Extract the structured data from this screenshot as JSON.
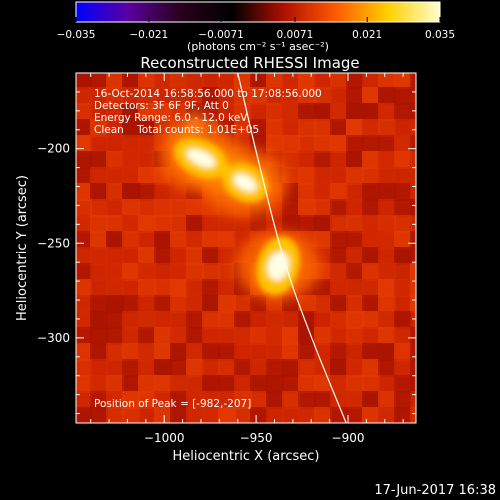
{
  "chart_data": {
    "type": "heatmap",
    "title": "Reconstructed RHESSI Image",
    "xlabel": "Heliocentric X (arcsec)",
    "ylabel": "Heliocentric Y (arcsec)",
    "xlim": [
      -1048,
      -863
    ],
    "ylim": [
      -345,
      -160
    ],
    "x_ticks": [
      -1000,
      -950,
      -900
    ],
    "x_tick_labels": [
      "−1000",
      "−950",
      "−900"
    ],
    "y_ticks": [
      -200,
      -250,
      -300
    ],
    "y_tick_labels": [
      "−200",
      "−250",
      "−300"
    ],
    "colorbar": {
      "range": [
        -0.035,
        0.035
      ],
      "ticks": [
        -0.035,
        -0.021,
        -0.0071,
        0.0071,
        0.021,
        0.035
      ],
      "tick_labels": [
        "−0.035",
        "−0.021",
        "−0.0071",
        "0.0071",
        "0.021",
        "0.035"
      ],
      "units": "(photons cm⁻² s⁻¹ asec⁻²)",
      "colors": [
        "#0000ff",
        "#5a00a0",
        "#2a001a",
        "#000000",
        "#b01000",
        "#ff5a00",
        "#ffd000",
        "#ffffd0"
      ]
    },
    "sources": [
      {
        "x": -980,
        "y": -205,
        "peak": 0.035
      },
      {
        "x": -956,
        "y": -218,
        "peak": 0.031
      },
      {
        "x": -938,
        "y": -262,
        "peak": 0.033
      }
    ],
    "limb_curve": [
      [
        -960,
        -160
      ],
      [
        -948,
        -210
      ],
      [
        -935,
        -260
      ],
      [
        -920,
        -300
      ],
      [
        -901,
        -345
      ]
    ],
    "info": {
      "line1": "16-Oct-2014 16:58:56.000 to 17:08:56.000",
      "line2": "Detectors: 3F 6F 9F, Att 0",
      "line3": "Energy Range: 6.0 - 12.0 keV",
      "line4": "Clean    Total counts: 1.01E+05",
      "peak": "Position of Peak = [-982,-207]"
    }
  },
  "footer": {
    "timestamp": "17-Jun-2017 16:38"
  }
}
